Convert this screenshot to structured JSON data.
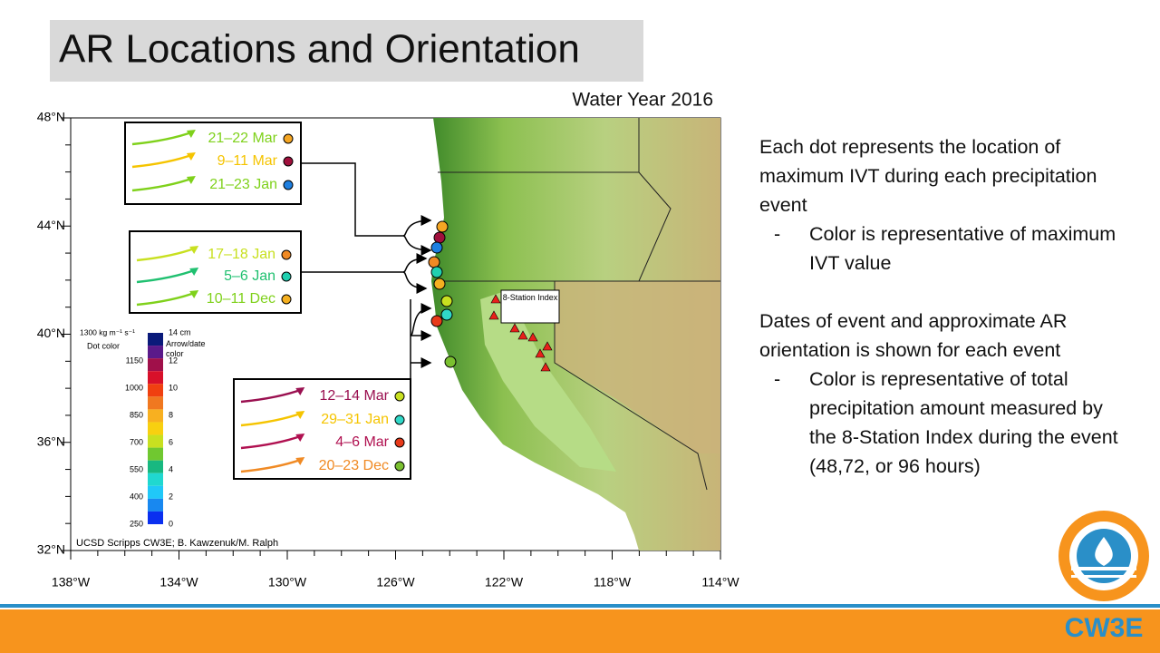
{
  "title": "AR Locations and Orientation",
  "subtitle": "Water Year 2016",
  "map": {
    "lat_labels": [
      "48°N",
      "44°N",
      "40°N",
      "36°N",
      "32°N"
    ],
    "lon_labels": [
      "138°W",
      "134°W",
      "130°W",
      "126°W",
      "122°W",
      "118°W",
      "114°W"
    ],
    "station_label": "8-Station Index",
    "credit": "UCSD Scripps CW3E; B. Kawzenuk/M. Ralph",
    "colorbar": {
      "left_title": "1300 kg m⁻¹ s⁻¹",
      "left_subtitle": "Dot color",
      "left_labels": [
        "1150",
        "1000",
        "850",
        "700",
        "550",
        "400",
        "250"
      ],
      "right_title": "14 cm",
      "right_subtitle": "Arrow/date color",
      "right_labels": [
        "12",
        "10",
        "8",
        "6",
        "4",
        "2",
        "0"
      ]
    },
    "event_groups": [
      [
        {
          "date": "21–22 Mar",
          "color": "#7fd11b",
          "dot": "#f5a623"
        },
        {
          "date": "9–11 Mar",
          "color": "#f5c400",
          "dot": "#a0103c"
        },
        {
          "date": "21–23 Jan",
          "color": "#7fd11b",
          "dot": "#1e7fe0"
        }
      ],
      [
        {
          "date": "17–18 Jan",
          "color": "#c8e020",
          "dot": "#f08a24"
        },
        {
          "date": "5–6 Jan",
          "color": "#20c070",
          "dot": "#20d0b0"
        },
        {
          "date": "10–11 Dec",
          "color": "#7fd11b",
          "dot": "#f5b020"
        }
      ],
      [
        {
          "date": "12–14 Mar",
          "color": "#9a1050",
          "dot": "#c8e020"
        },
        {
          "date": "29–31 Jan",
          "color": "#f5c400",
          "dot": "#30d8c8"
        },
        {
          "date": "4–6 Mar",
          "color": "#b01050",
          "dot": "#e83a1a"
        },
        {
          "date": "20–23 Dec",
          "color": "#f08a24",
          "dot": "#7ac030"
        }
      ]
    ]
  },
  "notes": [
    {
      "text": "Each dot represents the location of maximum IVT during each precipitation event",
      "bullets": [
        "Color is representative of maximum IVT value"
      ]
    },
    {
      "text": "Dates of event and approximate AR orientation is shown for each event",
      "bullets": [
        "Color is representative of total precipitation amount measured by the 8-Station Index during the event (48,72, or 96 hours)"
      ]
    }
  ],
  "logo": "CW3E"
}
